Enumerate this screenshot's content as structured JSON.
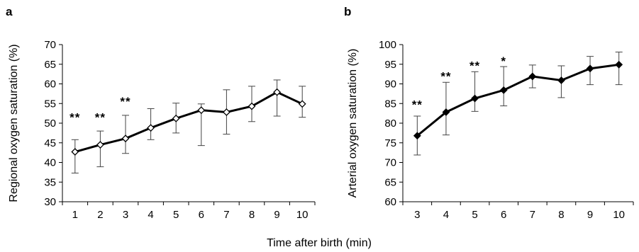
{
  "figure": {
    "shared_xlabel": "Time after birth (min)"
  },
  "chart_data": [
    {
      "type": "line",
      "panel_label": "a",
      "ylabel": "Regional oxygen saturation (%)",
      "xlabel": "",
      "x": [
        1,
        2,
        3,
        4,
        5,
        6,
        7,
        8,
        9,
        10
      ],
      "ylim": [
        30,
        70
      ],
      "yticks": [
        30,
        35,
        40,
        45,
        50,
        55,
        60,
        65,
        70
      ],
      "marker": "open-diamond",
      "series": [
        {
          "values": [
            42.7,
            44.5,
            46.1,
            48.8,
            51.2,
            53.3,
            52.8,
            54.3,
            57.9,
            54.9
          ],
          "err_low": [
            37.3,
            38.9,
            42.3,
            45.8,
            47.5,
            44.3,
            47.2,
            50.4,
            51.8,
            51.5
          ],
          "err_high": [
            45.8,
            48.0,
            52.0,
            53.7,
            55.1,
            54.9,
            58.5,
            59.4,
            61.0,
            59.4
          ]
        }
      ],
      "annotations": [
        {
          "x": 1,
          "y": 51.5,
          "text": "**"
        },
        {
          "x": 2,
          "y": 51.5,
          "text": "**"
        },
        {
          "x": 3,
          "y": 55.6,
          "text": "**"
        }
      ]
    },
    {
      "type": "line",
      "panel_label": "b",
      "ylabel": "Arterial oxygen saturation (%)",
      "xlabel": "",
      "x": [
        3,
        4,
        5,
        6,
        7,
        8,
        9,
        10
      ],
      "ylim": [
        60,
        100
      ],
      "yticks": [
        60,
        65,
        70,
        75,
        80,
        85,
        90,
        95,
        100
      ],
      "marker": "filled-diamond",
      "series": [
        {
          "values": [
            76.8,
            82.8,
            86.3,
            88.4,
            91.9,
            90.9,
            93.9,
            94.9
          ],
          "err_low": [
            71.9,
            77.0,
            83.0,
            84.4,
            89.0,
            86.5,
            89.8,
            89.8
          ],
          "err_high": [
            81.8,
            90.4,
            93.1,
            94.4,
            94.8,
            94.6,
            97.0,
            98.1
          ]
        }
      ],
      "annotations": [
        {
          "x": 3,
          "y": 84.8,
          "text": "**"
        },
        {
          "x": 4,
          "y": 92.0,
          "text": "**"
        },
        {
          "x": 5,
          "y": 94.7,
          "text": "**"
        },
        {
          "x": 6,
          "y": 95.9,
          "text": "*"
        }
      ]
    }
  ]
}
